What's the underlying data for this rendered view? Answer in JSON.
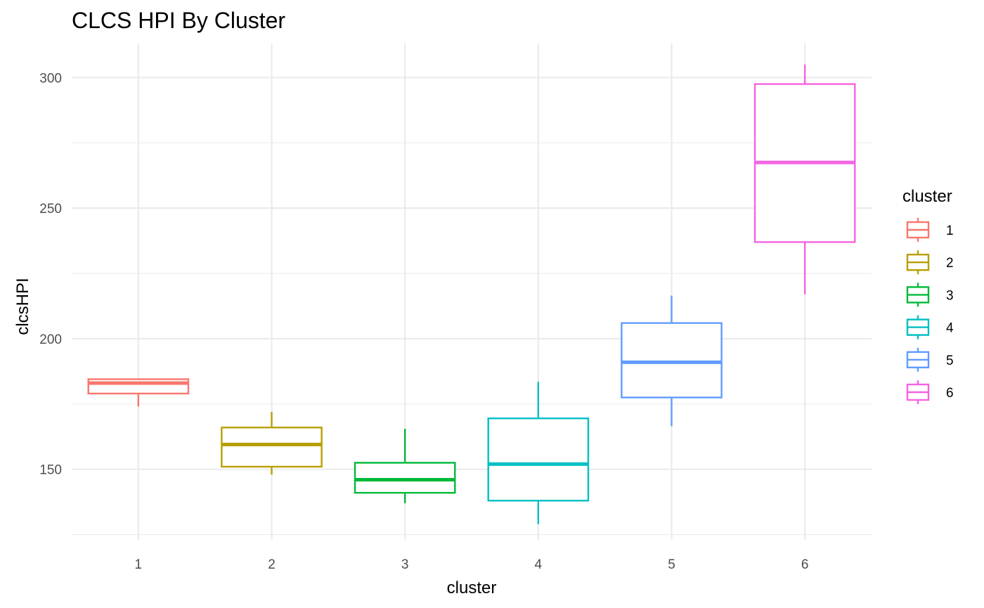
{
  "chart_data": {
    "type": "boxplot",
    "title": "CLCS HPI By Cluster",
    "xlabel": "cluster",
    "ylabel": "clcsHPI",
    "categories": [
      "1",
      "2",
      "3",
      "4",
      "5",
      "6"
    ],
    "y_ticks": [
      "150",
      "200",
      "250",
      "300"
    ],
    "ylim": [
      123,
      313
    ],
    "grid": true,
    "legend": {
      "title": "cluster",
      "placement": "right",
      "entries": [
        "1",
        "2",
        "3",
        "4",
        "5",
        "6"
      ]
    },
    "boxes": [
      {
        "category": "1",
        "color": "#F8766D",
        "min": 174,
        "q1": 179,
        "median": 183,
        "q3": 184.5,
        "max": 184.5
      },
      {
        "category": "2",
        "color": "#B79F00",
        "min": 148,
        "q1": 151,
        "median": 159.5,
        "q3": 166,
        "max": 172
      },
      {
        "category": "3",
        "color": "#00BA38",
        "min": 137,
        "q1": 141,
        "median": 146,
        "q3": 152.5,
        "max": 165.5
      },
      {
        "category": "4",
        "color": "#00BFC4",
        "min": 129,
        "q1": 138,
        "median": 152,
        "q3": 169.5,
        "max": 183.5
      },
      {
        "category": "5",
        "color": "#619CFF",
        "min": 166.5,
        "q1": 177.5,
        "median": 191,
        "q3": 206,
        "max": 216.5
      },
      {
        "category": "6",
        "color": "#F564E3",
        "min": 217,
        "q1": 237,
        "median": 267.5,
        "q3": 297.5,
        "max": 305
      }
    ]
  }
}
